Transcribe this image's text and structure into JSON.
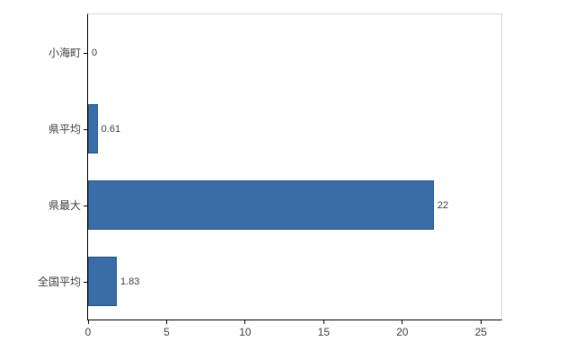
{
  "chart_data": {
    "type": "bar",
    "orientation": "horizontal",
    "title": "",
    "xlabel": "",
    "ylabel": "",
    "categories": [
      "小海町",
      "県平均",
      "県最大",
      "全国平均"
    ],
    "values": [
      0,
      0.61,
      22,
      1.83
    ],
    "value_labels": [
      "0",
      "0.61",
      "22",
      "1.83"
    ],
    "xlim": [
      0,
      26.3
    ],
    "xticks": [
      0,
      5,
      10,
      15,
      20,
      25
    ],
    "grid": false,
    "colors": {
      "bar_fill": "#3a6ca6",
      "bar_border": "#24527f",
      "axis": "#000000",
      "plot_border": "#d9d9d9",
      "text": "#3c3c3c"
    }
  }
}
